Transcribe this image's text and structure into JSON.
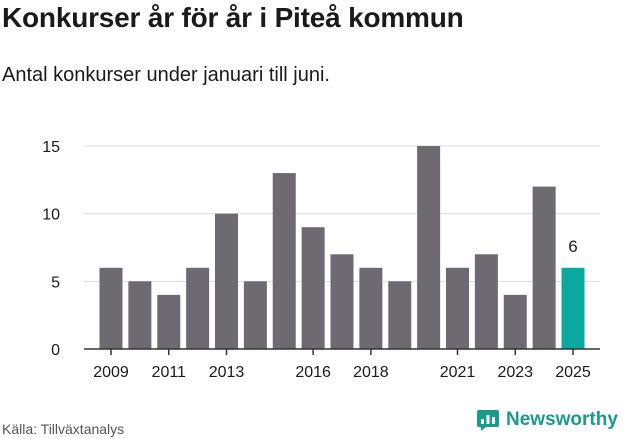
{
  "header": {
    "title": "Konkurser år för år i Piteå kommun",
    "subtitle": "Antal konkurser under januari till juni."
  },
  "footer": {
    "source": "Källa: Tillväxtanalys",
    "brand": "Newsworthy"
  },
  "colors": {
    "bar": "#6d6b71",
    "highlight": "#0aa89e",
    "grid": "#dcdcdc",
    "axis": "#333333",
    "text": "#1a1a1a",
    "brand": "#1a9b8c"
  },
  "icons": {
    "brand": "bar-chart-speech-bubble-icon"
  },
  "chart_data": {
    "type": "bar",
    "categories": [
      "2009",
      "2010",
      "2011",
      "2012",
      "2013",
      "2014",
      "2015",
      "2016",
      "2017",
      "2018",
      "2019",
      "2020",
      "2021",
      "2022",
      "2023",
      "2024",
      "2025"
    ],
    "values": [
      6,
      5,
      4,
      6,
      10,
      5,
      13,
      9,
      7,
      6,
      5,
      15,
      6,
      7,
      4,
      12,
      6
    ],
    "highlight_category": "2025",
    "highlight_label": "6",
    "x_tick_labels": [
      "2009",
      "2011",
      "2013",
      "2016",
      "2018",
      "2021",
      "2023",
      "2025"
    ],
    "y_ticks": [
      0,
      5,
      10,
      15
    ],
    "ylim": [
      0,
      15
    ],
    "grid": "horizontal",
    "legend": "none"
  }
}
